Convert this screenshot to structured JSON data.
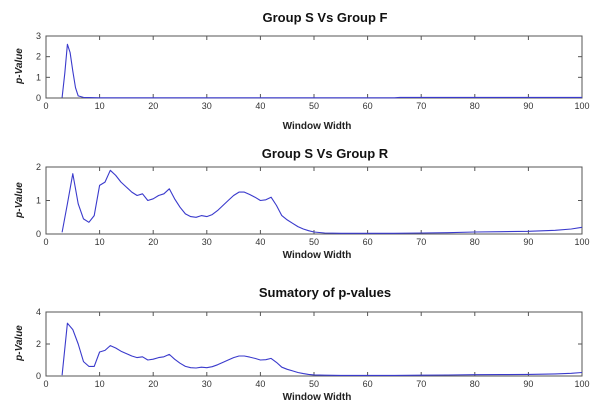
{
  "chart_data": [
    {
      "type": "line",
      "title": "Group S Vs Group F",
      "xlabel": "Window Width",
      "ylabel": "p-Value",
      "xlim": [
        0,
        100
      ],
      "ylim": [
        0,
        3
      ],
      "xticks": [
        "0",
        "10",
        "20",
        "30",
        "40",
        "50",
        "60",
        "70",
        "80",
        "90",
        "100"
      ],
      "yticks": [
        "0",
        "1",
        "2",
        "3"
      ],
      "grid": false,
      "series": [
        {
          "color": "#3a3acc",
          "x": [
            3,
            3.5,
            4,
            4.5,
            5,
            5.5,
            6,
            7,
            8,
            10,
            20,
            30,
            40,
            50,
            60,
            65,
            66,
            70,
            80,
            90,
            100
          ],
          "y": [
            0.02,
            1.2,
            2.6,
            2.2,
            1.3,
            0.5,
            0.1,
            0.03,
            0.02,
            0.01,
            0.01,
            0.01,
            0.01,
            0.01,
            0.01,
            0.01,
            0.03,
            0.03,
            0.03,
            0.03,
            0.03
          ]
        }
      ]
    },
    {
      "type": "line",
      "title": "Group S Vs Group R",
      "xlabel": "Window Width",
      "ylabel": "p-Value",
      "xlim": [
        0,
        100
      ],
      "ylim": [
        0,
        2
      ],
      "xticks": [
        "0",
        "10",
        "20",
        "30",
        "40",
        "50",
        "60",
        "70",
        "80",
        "90",
        "100"
      ],
      "yticks": [
        "0",
        "1",
        "2"
      ],
      "grid": false,
      "series": [
        {
          "color": "#3a3acc",
          "x": [
            3,
            4,
            5,
            6,
            7,
            8,
            9,
            10,
            11,
            12,
            13,
            14,
            15,
            16,
            17,
            18,
            19,
            20,
            21,
            22,
            23,
            24,
            25,
            26,
            27,
            28,
            29,
            30,
            31,
            32,
            33,
            34,
            35,
            36,
            37,
            38,
            39,
            40,
            41,
            42,
            43,
            44,
            45,
            46,
            47,
            48,
            49,
            50,
            52,
            55,
            60,
            65,
            70,
            75,
            80,
            85,
            90,
            95,
            98,
            100
          ],
          "y": [
            0.05,
            0.9,
            1.8,
            0.9,
            0.45,
            0.35,
            0.55,
            1.45,
            1.55,
            1.9,
            1.75,
            1.55,
            1.4,
            1.25,
            1.15,
            1.2,
            1.0,
            1.05,
            1.15,
            1.2,
            1.35,
            1.05,
            0.8,
            0.6,
            0.52,
            0.5,
            0.55,
            0.52,
            0.58,
            0.7,
            0.85,
            1.0,
            1.15,
            1.25,
            1.25,
            1.18,
            1.1,
            1.0,
            1.02,
            1.1,
            0.85,
            0.55,
            0.42,
            0.32,
            0.22,
            0.15,
            0.1,
            0.06,
            0.03,
            0.02,
            0.02,
            0.02,
            0.03,
            0.04,
            0.06,
            0.07,
            0.08,
            0.11,
            0.15,
            0.2
          ]
        }
      ]
    },
    {
      "type": "line",
      "title": "Sumatory of  p-values",
      "xlabel": "Window Width",
      "ylabel": "p-Value",
      "xlim": [
        0,
        100
      ],
      "ylim": [
        0,
        4
      ],
      "xticks": [
        "0",
        "10",
        "20",
        "30",
        "40",
        "50",
        "60",
        "70",
        "80",
        "90",
        "100"
      ],
      "yticks": [
        "0",
        "2",
        "4"
      ],
      "grid": false,
      "series": [
        {
          "color": "#3a3acc",
          "x": [
            3,
            4,
            5,
            6,
            7,
            8,
            9,
            10,
            11,
            12,
            13,
            14,
            15,
            16,
            17,
            18,
            19,
            20,
            21,
            22,
            23,
            24,
            25,
            26,
            27,
            28,
            29,
            30,
            31,
            32,
            33,
            34,
            35,
            36,
            37,
            38,
            39,
            40,
            41,
            42,
            43,
            44,
            45,
            46,
            47,
            48,
            49,
            50,
            52,
            55,
            60,
            65,
            70,
            75,
            80,
            85,
            90,
            95,
            98,
            100
          ],
          "y": [
            0.05,
            3.3,
            2.9,
            2.0,
            0.9,
            0.6,
            0.6,
            1.5,
            1.6,
            1.9,
            1.75,
            1.55,
            1.4,
            1.25,
            1.15,
            1.2,
            1.0,
            1.05,
            1.15,
            1.2,
            1.35,
            1.05,
            0.8,
            0.6,
            0.52,
            0.5,
            0.55,
            0.52,
            0.58,
            0.7,
            0.85,
            1.0,
            1.15,
            1.25,
            1.25,
            1.18,
            1.1,
            1.0,
            1.02,
            1.1,
            0.85,
            0.55,
            0.42,
            0.32,
            0.22,
            0.15,
            0.1,
            0.07,
            0.05,
            0.04,
            0.04,
            0.04,
            0.05,
            0.06,
            0.08,
            0.09,
            0.1,
            0.13,
            0.17,
            0.22
          ]
        }
      ]
    }
  ]
}
